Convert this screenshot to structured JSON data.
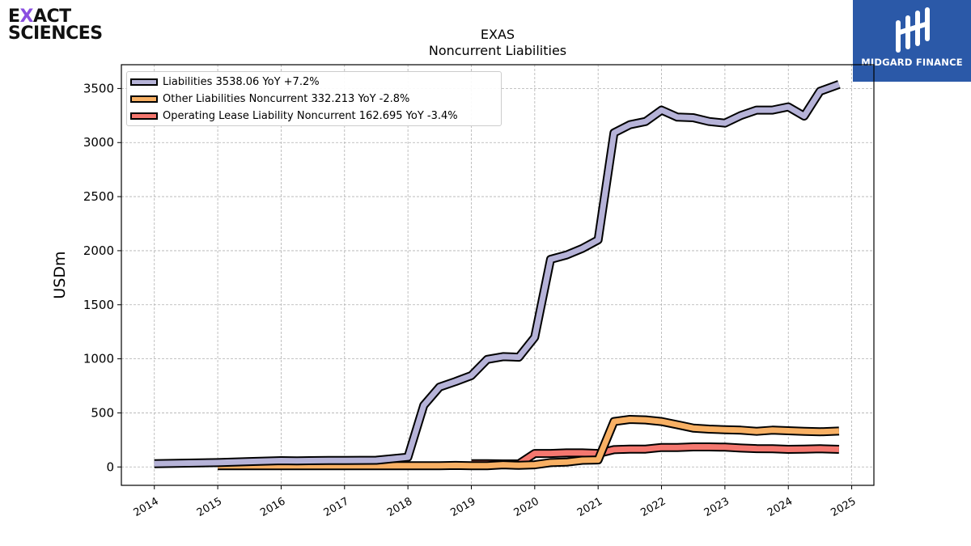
{
  "brand": {
    "left_logo_line1": "EXACT",
    "left_logo_line2": "SCIENCES",
    "right_logo_text": "MIDGARD FINANCE",
    "right_logo_color": "#2b59a8",
    "left_accent_color": "#8a4fe0"
  },
  "chart_data": {
    "type": "line",
    "title": "EXAS",
    "subtitle": "Noncurrent  Liabilities",
    "ylabel": "USDm",
    "xlabel": "",
    "ylim": [
      -170,
      3720
    ],
    "xlim": [
      2013.48,
      2025.35
    ],
    "yticks": [
      0,
      500,
      1000,
      1500,
      2000,
      2500,
      3000,
      3500
    ],
    "xticks": [
      "2014",
      "2015",
      "2016",
      "2017",
      "2018",
      "2019",
      "2020",
      "2021",
      "2022",
      "2023",
      "2024",
      "2025"
    ],
    "grid": true,
    "legend_position": "top-left",
    "series": [
      {
        "name": "Liabilities",
        "legend_label": "Liabilities  3538.06 YoY +7.2%",
        "color": "#b6b3d8",
        "points": [
          [
            2014.0,
            30
          ],
          [
            2015.0,
            40
          ],
          [
            2015.5,
            50
          ],
          [
            2016.0,
            58
          ],
          [
            2016.25,
            57
          ],
          [
            2016.75,
            60
          ],
          [
            2017.0,
            60
          ],
          [
            2017.5,
            62
          ],
          [
            2018.0,
            90
          ],
          [
            2018.25,
            570
          ],
          [
            2018.5,
            740
          ],
          [
            2018.75,
            790
          ],
          [
            2019.0,
            845
          ],
          [
            2019.25,
            995
          ],
          [
            2019.5,
            1020
          ],
          [
            2019.75,
            1015
          ],
          [
            2020.0,
            1200
          ],
          [
            2020.25,
            1920
          ],
          [
            2020.5,
            1960
          ],
          [
            2020.75,
            2020
          ],
          [
            2021.0,
            2100
          ],
          [
            2021.25,
            3090
          ],
          [
            2021.5,
            3165
          ],
          [
            2021.75,
            3195
          ],
          [
            2022.0,
            3300
          ],
          [
            2022.25,
            3235
          ],
          [
            2022.5,
            3230
          ],
          [
            2022.75,
            3195
          ],
          [
            2023.0,
            3180
          ],
          [
            2023.25,
            3250
          ],
          [
            2023.5,
            3300
          ],
          [
            2023.75,
            3300
          ],
          [
            2024.0,
            3330
          ],
          [
            2024.25,
            3245
          ],
          [
            2024.5,
            3475
          ],
          [
            2024.8,
            3538
          ]
        ]
      },
      {
        "name": "Other Liabilities Noncurrent",
        "legend_label": "Other Liabilities Noncurrent  332.213 YoY -2.8%",
        "color": "#f8b064",
        "points": [
          [
            2015.0,
            12
          ],
          [
            2016.0,
            12
          ],
          [
            2017.0,
            12
          ],
          [
            2018.0,
            12
          ],
          [
            2018.5,
            12
          ],
          [
            2018.75,
            14
          ],
          [
            2019.0,
            12
          ],
          [
            2019.25,
            12
          ],
          [
            2019.5,
            20
          ],
          [
            2019.75,
            15
          ],
          [
            2020.0,
            20
          ],
          [
            2020.25,
            40
          ],
          [
            2020.5,
            45
          ],
          [
            2020.75,
            62
          ],
          [
            2021.0,
            65
          ],
          [
            2021.25,
            420
          ],
          [
            2021.5,
            440
          ],
          [
            2021.75,
            435
          ],
          [
            2022.0,
            420
          ],
          [
            2022.25,
            390
          ],
          [
            2022.5,
            360
          ],
          [
            2022.75,
            350
          ],
          [
            2023.0,
            345
          ],
          [
            2023.25,
            340
          ],
          [
            2023.5,
            330
          ],
          [
            2023.75,
            340
          ],
          [
            2024.0,
            335
          ],
          [
            2024.25,
            330
          ],
          [
            2024.5,
            325
          ],
          [
            2024.8,
            332
          ]
        ]
      },
      {
        "name": "Operating Lease Liability Noncurrent",
        "legend_label": "Operating Lease Liability Noncurrent  162.695 YoY -3.4%",
        "color": "#f4776f",
        "points": [
          [
            2019.0,
            30
          ],
          [
            2019.25,
            30
          ],
          [
            2019.5,
            28
          ],
          [
            2019.75,
            28
          ],
          [
            2020.0,
            125
          ],
          [
            2020.25,
            125
          ],
          [
            2020.5,
            130
          ],
          [
            2020.75,
            130
          ],
          [
            2021.0,
            125
          ],
          [
            2021.25,
            160
          ],
          [
            2021.5,
            165
          ],
          [
            2021.75,
            165
          ],
          [
            2022.0,
            180
          ],
          [
            2022.25,
            180
          ],
          [
            2022.5,
            185
          ],
          [
            2022.75,
            185
          ],
          [
            2023.0,
            183
          ],
          [
            2023.25,
            175
          ],
          [
            2023.5,
            170
          ],
          [
            2023.75,
            168
          ],
          [
            2024.0,
            163
          ],
          [
            2024.25,
            165
          ],
          [
            2024.5,
            168
          ],
          [
            2024.8,
            163
          ]
        ]
      }
    ]
  }
}
